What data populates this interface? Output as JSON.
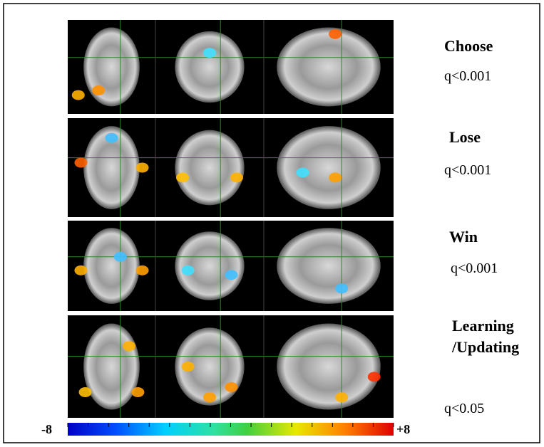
{
  "figure": {
    "rows": [
      {
        "label_lines": [
          "Choose"
        ],
        "threshold": "q<0.001"
      },
      {
        "label_lines": [
          "Lose"
        ],
        "threshold": "q<0.001"
      },
      {
        "label_lines": [
          "Win"
        ],
        "threshold": "q<0.001"
      },
      {
        "label_lines": [
          "Learning",
          "/Updating"
        ],
        "threshold": "q<0.05"
      }
    ],
    "colorbar": {
      "min_label": "-8",
      "max_label": "+8"
    }
  }
}
